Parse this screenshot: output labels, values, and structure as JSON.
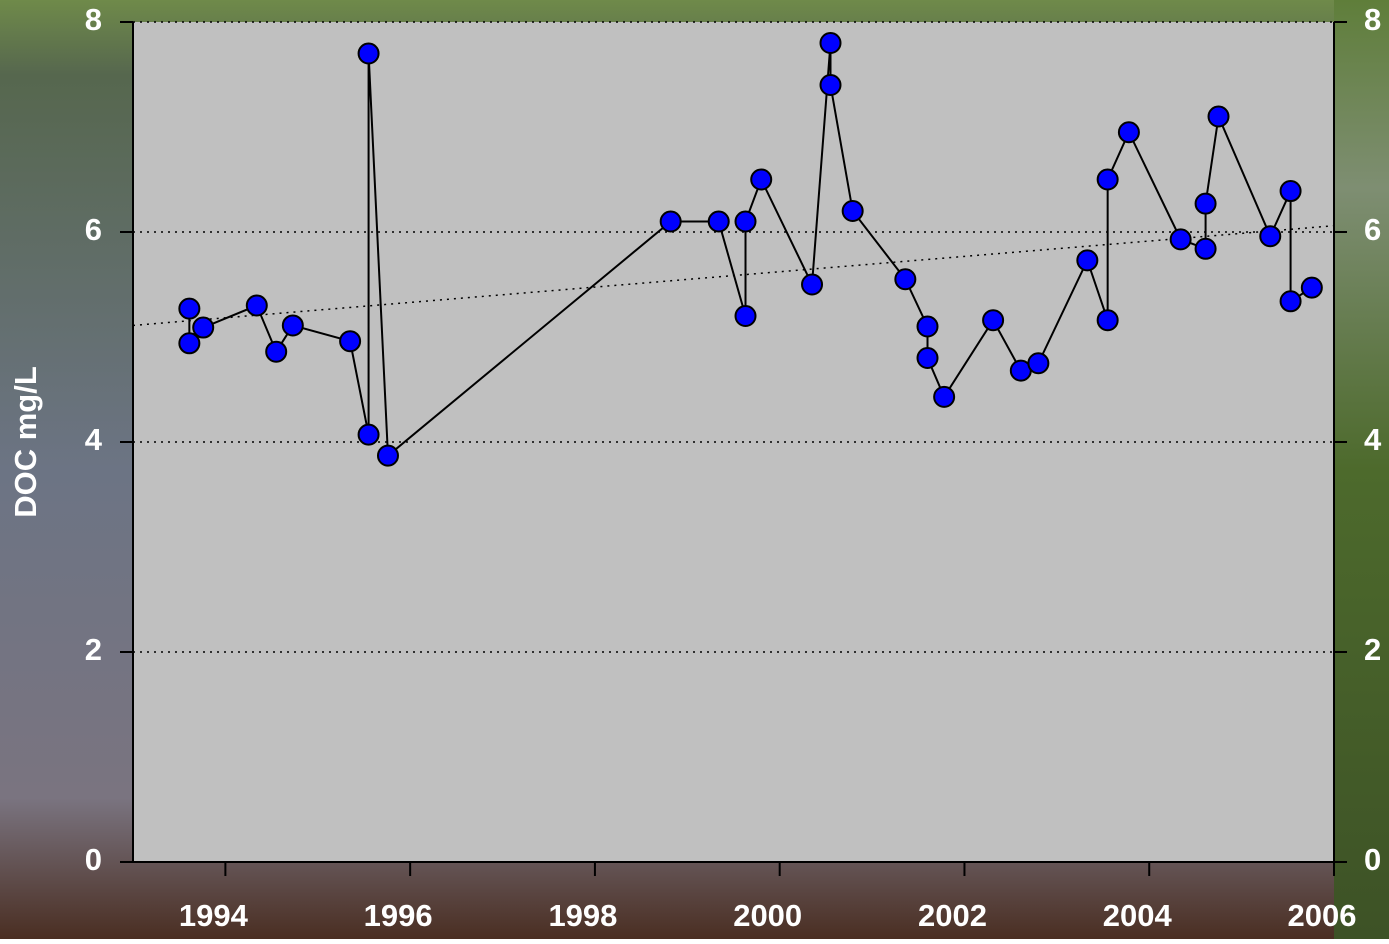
{
  "chart_data": {
    "type": "line",
    "ylabel": "DOC mg/L",
    "xlim": [
      1993,
      2006
    ],
    "xticks": [
      1994,
      1996,
      1998,
      2000,
      2002,
      2004,
      2006
    ],
    "ylim": [
      0,
      8
    ],
    "yticks": [
      0,
      2,
      4,
      6,
      8
    ],
    "grid": true,
    "series": [
      {
        "color": "#0000ff",
        "x": [
          1993.61,
          1993.61,
          1993.76,
          1994.34,
          1994.55,
          1994.73,
          1995.35,
          1995.55,
          1995.55,
          1995.76,
          1998.82,
          1999.34,
          1999.63,
          1999.63,
          1999.8,
          2000.35,
          2000.55,
          2000.55,
          2000.79,
          2001.36,
          2001.6,
          2001.6,
          2001.78,
          2002.31,
          2002.61,
          2002.8,
          2003.33,
          2003.55,
          2003.55,
          2003.78,
          2004.34,
          2004.61,
          2004.61,
          2004.75,
          2005.31,
          2005.53,
          2005.53,
          2005.76
        ],
        "values": [
          5.27,
          4.94,
          5.09,
          5.3,
          4.86,
          5.11,
          4.96,
          4.07,
          7.7,
          3.87,
          6.1,
          6.1,
          5.2,
          6.1,
          6.5,
          5.5,
          7.8,
          7.4,
          6.2,
          5.55,
          5.1,
          4.8,
          4.43,
          5.16,
          4.68,
          4.75,
          5.73,
          5.16,
          6.5,
          6.95,
          5.93,
          5.84,
          6.27,
          7.1,
          5.96,
          6.39,
          5.34,
          5.47
        ]
      }
    ],
    "trendline": {
      "x": [
        1993,
        2006
      ],
      "values": [
        5.11,
        6.06
      ]
    }
  }
}
